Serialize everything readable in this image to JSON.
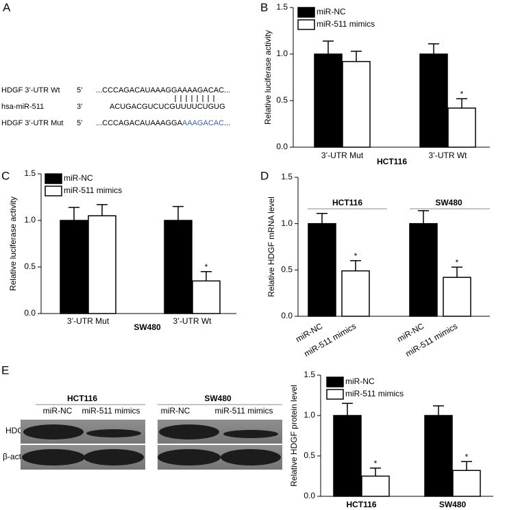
{
  "panels": [
    "A",
    "B",
    "C",
    "D",
    "E"
  ],
  "sequences": [
    {
      "label": "HDGF 3’-UTR Wt",
      "end": "5’",
      "parts": [
        "...CCCAGACAUAAAGGAAAAGACAC..."
      ]
    },
    {
      "label": "hsa-miR-511",
      "end": "3’",
      "parts": [
        "ACUGACGUCUCGUUUUCUGUG"
      ]
    },
    {
      "label": "HDGF 3’-UTR Mut",
      "end": "5’",
      "parts": [
        "...CCCAGACAUAAAGGA",
        "AAAGACAC",
        "..."
      ]
    }
  ],
  "blot": {
    "groups": [
      {
        "name": "HCT116",
        "lanes": [
          "miR-NC",
          "miR-511 mimics"
        ]
      },
      {
        "name": "SW480",
        "lanes": [
          "miR-NC",
          "miR-511 mimics"
        ]
      }
    ],
    "rows": [
      "HDGF",
      "β-actin"
    ]
  },
  "chart_data": [
    {
      "type": "bar",
      "ylabel": "Relative luciferase activity",
      "xlabel": "HCT116",
      "categories": [
        "3’-UTR Mut",
        "3’-UTR Wt"
      ],
      "series": [
        {
          "name": "miR-NC",
          "color": "#000000",
          "values": [
            1.0,
            1.0
          ],
          "errors": [
            0.14,
            0.11
          ],
          "marks": [
            null,
            null
          ]
        },
        {
          "name": "miR-511 mimics",
          "color": "#ffffff",
          "values": [
            0.92,
            0.42
          ],
          "errors": [
            0.11,
            0.1
          ],
          "marks": [
            null,
            "*"
          ]
        }
      ],
      "ylim": [
        0,
        1.5
      ],
      "yticks": [
        {
          "value": 0,
          "label": "0.0"
        },
        0.5,
        {
          "value": 1,
          "label": "1.0"
        },
        1.5
      ]
    },
    {
      "type": "bar",
      "ylabel": "Relative luciferase activity",
      "xlabel": "SW480",
      "categories": [
        "3’-UTR Mut",
        "3’-UTR Wt"
      ],
      "series": [
        {
          "name": "miR-NC",
          "color": "#000000",
          "values": [
            1.0,
            1.0
          ],
          "errors": [
            0.14,
            0.15
          ],
          "marks": [
            null,
            null
          ]
        },
        {
          "name": "miR-511 mimics",
          "color": "#ffffff",
          "values": [
            1.05,
            0.35
          ],
          "errors": [
            0.12,
            0.1
          ],
          "marks": [
            null,
            "*"
          ]
        }
      ],
      "ylim": [
        0,
        1.5
      ],
      "yticks": [
        {
          "value": 0,
          "label": "0.0"
        },
        0.5,
        {
          "value": 1,
          "label": "1.0"
        },
        1.5
      ]
    },
    {
      "type": "bar",
      "ylabel": "Relative HDGF mRNA level",
      "groups": [
        "HCT116",
        "SW480"
      ],
      "categories": [
        "miR-NC",
        "miR-511 mimics",
        "miR-NC",
        "miR-511 mimics"
      ],
      "series": [
        {
          "colors": [
            "#000000",
            "#ffffff",
            "#000000",
            "#ffffff"
          ],
          "values": [
            1.0,
            0.49,
            1.0,
            0.42
          ],
          "errors": [
            0.11,
            0.11,
            0.14,
            0.11
          ],
          "marks": [
            null,
            "*",
            null,
            "*"
          ]
        }
      ],
      "ylim": [
        0,
        1.5
      ],
      "yticks": [
        {
          "value": 0,
          "label": "0.0"
        },
        0.5,
        {
          "value": 1,
          "label": "1.0"
        },
        1.5
      ]
    },
    {
      "type": "bar",
      "ylabel": "Relative HDGF protein level",
      "categories": [
        "HCT116",
        "SW480"
      ],
      "series": [
        {
          "name": "miR-NC",
          "color": "#000000",
          "values": [
            1.0,
            1.0
          ],
          "errors": [
            0.15,
            0.12
          ],
          "marks": [
            null,
            null
          ]
        },
        {
          "name": "miR-511 mimics",
          "color": "#ffffff",
          "values": [
            0.25,
            0.32
          ],
          "errors": [
            0.1,
            0.11
          ],
          "marks": [
            "*",
            "*"
          ]
        }
      ],
      "ylim": [
        0,
        1.5
      ],
      "yticks": [
        {
          "value": 0,
          "label": "0.0"
        },
        0.5,
        {
          "value": 1,
          "label": "1.0"
        },
        1.5
      ]
    }
  ]
}
